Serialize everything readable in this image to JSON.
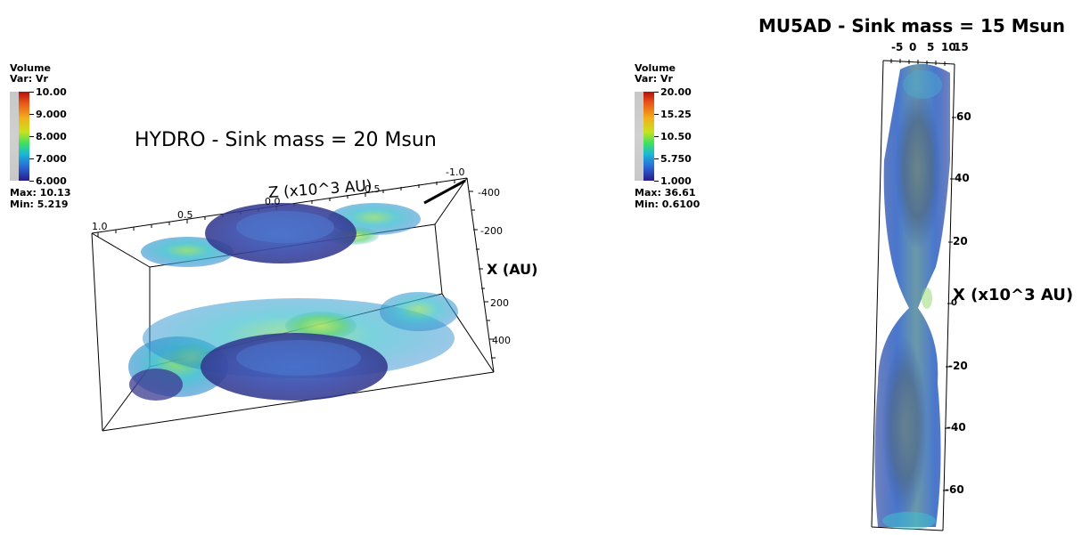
{
  "left_panel": {
    "legend": {
      "title": "Volume",
      "var": "Var: Vr",
      "ticks": [
        "10.00",
        "9.000",
        "8.000",
        "7.000",
        "6.000"
      ],
      "max": "Max: 10.13",
      "min": "Min: 5.219"
    },
    "title": "HYDRO - Sink mass = 20 Msun",
    "z_axis": {
      "label": "Z (x10^3 AU)",
      "ticks": [
        "1.0",
        "0.5",
        "0.0",
        "-0.5",
        "-1.0"
      ]
    },
    "x_axis": {
      "label": "X (AU)",
      "ticks": [
        "-400",
        "-200",
        "0",
        "200",
        "400"
      ]
    }
  },
  "right_panel": {
    "legend": {
      "title": "Volume",
      "var": "Var: Vr",
      "ticks": [
        "20.00",
        "15.25",
        "10.50",
        "5.750",
        "1.000"
      ],
      "max": "Max: 36.61",
      "min": "Min: 0.6100"
    },
    "title": "MU5AD - Sink mass = 15 Msun",
    "top_axis": {
      "ticks": [
        "-5",
        "0",
        "5",
        "10",
        "15"
      ]
    },
    "x_axis": {
      "label": "X (x10^3 AU)",
      "ticks": [
        "60",
        "40",
        "20",
        "0",
        "-20",
        "-40",
        "-60"
      ]
    }
  }
}
